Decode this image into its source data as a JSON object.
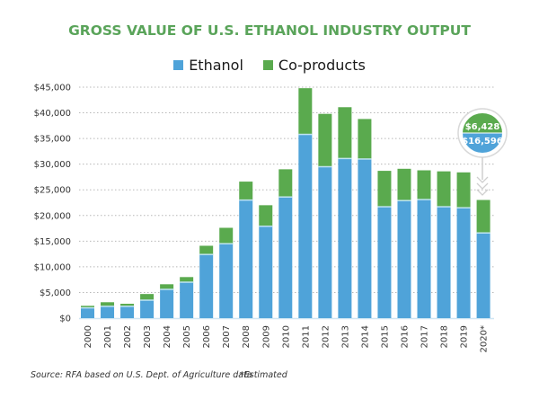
{
  "chart_data": {
    "type": "bar",
    "stacked": true,
    "title": "GROSS VALUE OF U.S. ETHANOL INDUSTRY OUTPUT",
    "xlabel": "",
    "ylabel": "",
    "ylim": [
      0,
      45000
    ],
    "yticks": [
      0,
      5000,
      10000,
      15000,
      20000,
      25000,
      30000,
      35000,
      40000,
      45000
    ],
    "ytick_labels": [
      "$0",
      "$5,000",
      "$10,000",
      "$15,000",
      "$20,000",
      "$25,000",
      "$30,000",
      "$35,000",
      "$40,000",
      "$45,000"
    ],
    "grid": true,
    "legend_position": "top-center",
    "categories": [
      "2000",
      "2001",
      "2002",
      "2003",
      "2004",
      "2005",
      "2006",
      "2007",
      "2008",
      "2009",
      "2010",
      "2011",
      "2012",
      "2013",
      "2014",
      "2015",
      "2016",
      "2017",
      "2018",
      "2019",
      "2020*"
    ],
    "series": [
      {
        "name": "Ethanol",
        "color": "#4fa3d9",
        "values": [
          2000,
          2300,
          2300,
          3500,
          5600,
          7000,
          12400,
          14500,
          23000,
          17900,
          23600,
          35800,
          29500,
          31100,
          31000,
          21700,
          22900,
          23100,
          21700,
          21500,
          16596
        ]
      },
      {
        "name": "Co-products",
        "color": "#5aaa4e",
        "values": [
          400,
          800,
          500,
          1200,
          1000,
          1000,
          1700,
          3100,
          3600,
          4100,
          5400,
          9000,
          10300,
          10000,
          7800,
          7000,
          6200,
          5700,
          6900,
          6900,
          6428
        ]
      }
    ],
    "annotations": [
      {
        "category": "2020*",
        "coproducts_label": "$6,428",
        "ethanol_label": "$16,596"
      }
    ],
    "source_note": "Source: RFA based on U.S. Dept. of Agriculture data",
    "footnote": "*Estimated"
  }
}
